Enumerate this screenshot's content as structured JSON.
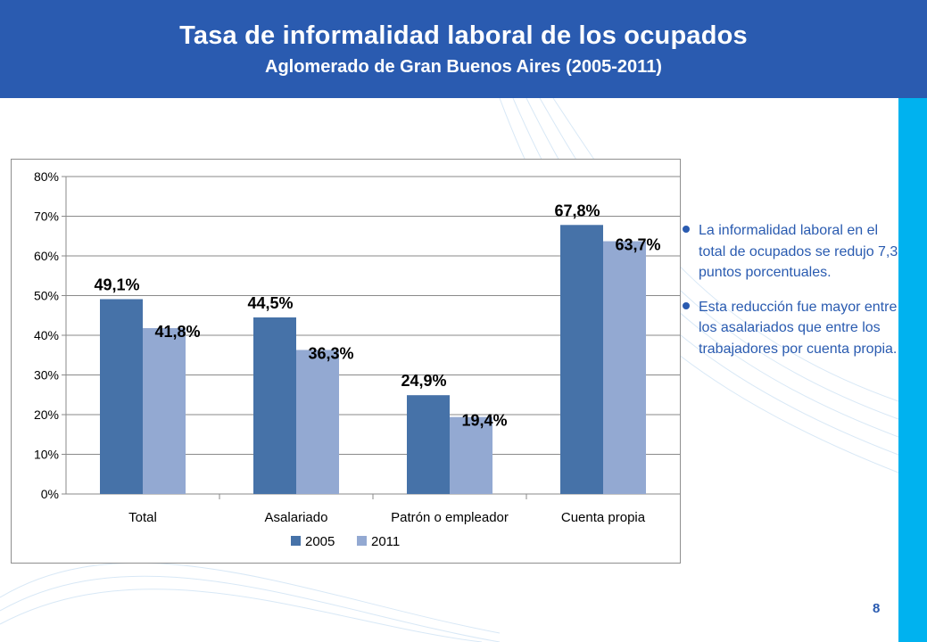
{
  "header": {
    "title": "Tasa de informalidad laboral de los ocupados",
    "subtitle": "Aglomerado de Gran Buenos Aires (2005-2011)"
  },
  "colors": {
    "header_bg": "#2a5bb0",
    "accent_bar": "#00b2ef",
    "series_2005": "#4672a8",
    "series_2011": "#93a9d2",
    "text_blue": "#2a5bb0"
  },
  "chart_data": {
    "type": "bar",
    "categories": [
      "Total",
      "Asalariado",
      "Patrón o empleador",
      "Cuenta propia"
    ],
    "series": [
      {
        "name": "2005",
        "values": [
          49.1,
          44.5,
          24.9,
          67.8
        ],
        "labels": [
          "49,1%",
          "44,5%",
          "24,9%",
          "67,8%"
        ]
      },
      {
        "name": "2011",
        "values": [
          41.8,
          36.3,
          19.4,
          63.7
        ],
        "labels": [
          "41,8%",
          "36,3%",
          "19,4%",
          "63,7%"
        ]
      }
    ],
    "yticks": [
      "0%",
      "10%",
      "20%",
      "30%",
      "40%",
      "50%",
      "60%",
      "70%",
      "80%"
    ],
    "ylim": [
      0,
      80
    ],
    "grid": true,
    "legend_position": "bottom"
  },
  "bullets": [
    "La informalidad laboral en el total de ocupados se redujo 7,3 puntos porcentuales.",
    "Esta reducción fue mayor entre los asalariados que entre los trabajadores por cuenta propia."
  ],
  "page_number": "8"
}
